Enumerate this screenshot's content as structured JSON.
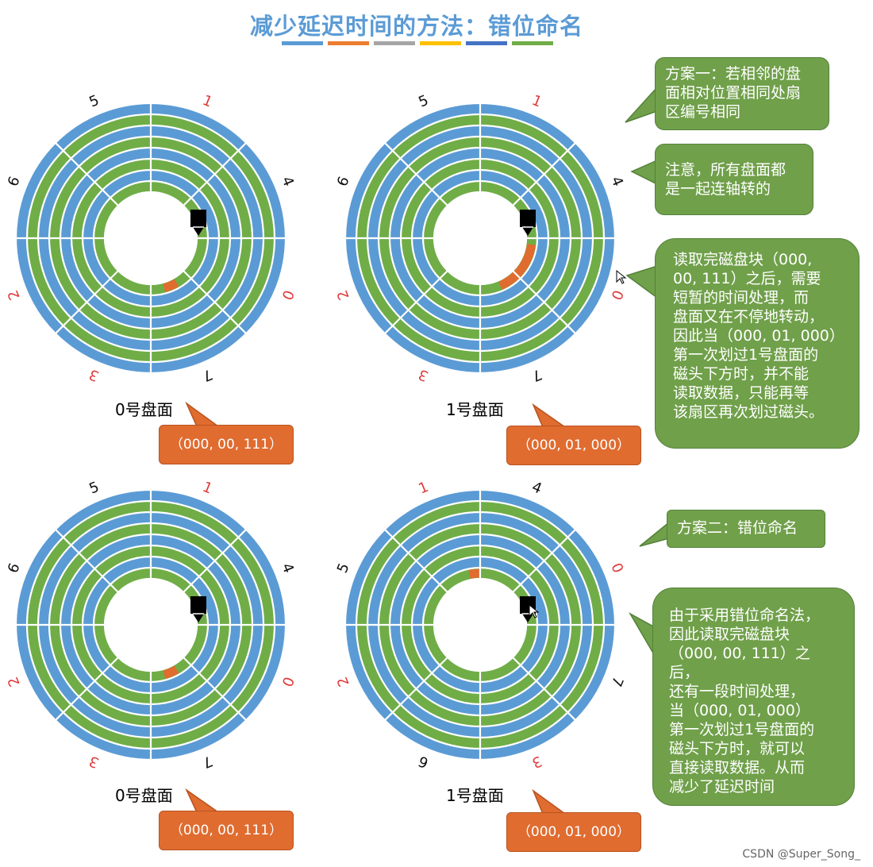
{
  "title": "减少延迟时间的方法：错位命名",
  "title_bar_colors": [
    "#5b9bd5",
    "#ed7d31",
    "#a5a5a5",
    "#ffc000",
    "#4472c4",
    "#70ad47"
  ],
  "colors": {
    "blue": "#5b9bd5",
    "green": "#70ad47",
    "orange": "#e06c30",
    "callout_green": "#70a04a",
    "callout_border": "#54823a",
    "number_red": "#e03a3a"
  },
  "disks": [
    {
      "label": "0号盘面",
      "numbers": [
        "0",
        "1",
        "2",
        "3",
        "4",
        "5",
        "6",
        "7"
      ],
      "red": [
        "0",
        "1",
        "2",
        "3"
      ]
    },
    {
      "label": "1号盘面",
      "numbers": [
        "0",
        "1",
        "2",
        "3",
        "4",
        "5",
        "6",
        "7"
      ],
      "red": [
        "0",
        "1",
        "2",
        "3"
      ]
    },
    {
      "label": "0号盘面",
      "numbers": [
        "0",
        "1",
        "2",
        "3",
        "4",
        "5",
        "6",
        "7"
      ],
      "red": [
        "0",
        "1",
        "2",
        "3"
      ]
    },
    {
      "label": "1号盘面",
      "numbers": [
        "0",
        "1",
        "2",
        "3",
        "4",
        "5",
        "6",
        "7"
      ],
      "red": [
        "0",
        "1",
        "2",
        "3"
      ]
    }
  ],
  "addr_callouts": [
    "（000, 00, 111）",
    "（000, 01, 000）",
    "（000, 00, 111）",
    "（000, 01, 000）"
  ],
  "notes": {
    "plan1": [
      "方案一：若相邻的盘",
      "面相对位置相同处扇",
      "区编号相同"
    ],
    "note_rotate": [
      "注意，所有盘面都",
      "是一起连轴转的"
    ],
    "explain1": [
      "读取完磁盘块（000,",
      "00, 111）之后，需要",
      "短暂的时间处理，而",
      "盘面又在不停地转动，",
      "因此当（000, 01, 000）",
      "第一次划过1号盘面的",
      "磁头下方时，并不能",
      "读取数据，只能再等",
      "该扇区再次划过磁头。"
    ],
    "plan2": [
      "方案二：错位命名"
    ],
    "explain2": [
      "由于采用错位命名法，",
      "因此读取完磁盘块",
      "（000, 00, 111）之后，",
      "还有一段时间处理，",
      "当（000, 01, 000）",
      "第一次划过1号盘面的",
      "磁头下方时，就可以",
      "直接读取数据。从而",
      "减少了延迟时间"
    ]
  },
  "footer": "CSDN @Super_Song_"
}
